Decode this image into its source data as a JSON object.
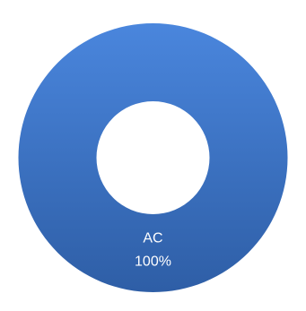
{
  "chart_data": {
    "type": "pie",
    "variant": "doughnut",
    "slices": [
      {
        "label": "AC",
        "value": 100,
        "percent_label": "100%",
        "color": "#3d72c4"
      }
    ]
  },
  "colors": {
    "slice_base": "#3d72c4",
    "slice_highlight": "#4a86dd",
    "slice_shadow": "#2e5ea6",
    "background": "#ffffff"
  }
}
